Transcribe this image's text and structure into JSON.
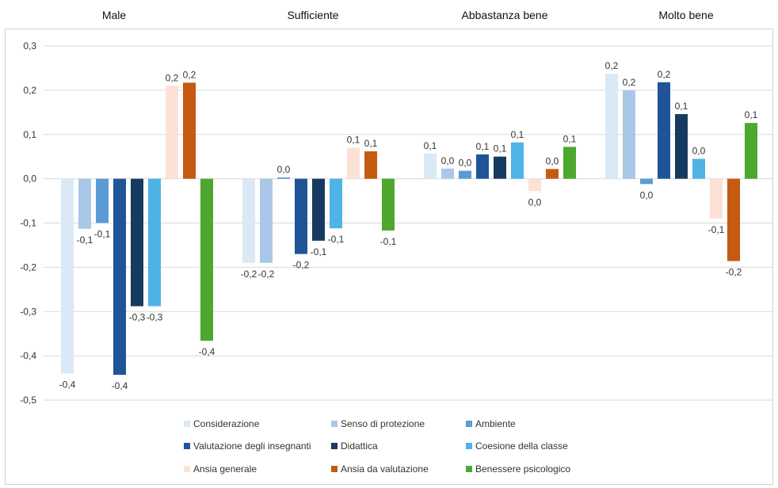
{
  "chart_data": {
    "type": "bar",
    "categories": [
      "Male",
      "Sufficiente",
      "Abbastanza bene",
      "Molto bene"
    ],
    "ylim": [
      -0.5,
      0.3
    ],
    "yticks": [
      0.3,
      0.2,
      0.1,
      0.0,
      -0.1,
      -0.2,
      -0.3,
      -0.4,
      -0.5
    ],
    "ytick_labels": [
      "0,3",
      "0,2",
      "0,1",
      "0,0",
      "-0,1",
      "-0,2",
      "-0,3",
      "-0,4",
      "-0,5"
    ],
    "grid": true,
    "legend_position": "bottom",
    "series": [
      {
        "name": "Considerazione",
        "color": "#dbe8f5",
        "values": [
          -0.44,
          -0.19,
          0.057,
          0.237
        ],
        "labels": [
          "-0,4",
          "-0,2",
          "0,1",
          "0,2"
        ]
      },
      {
        "name": "Senso di protezione",
        "color": "#a9c8e8",
        "values": [
          -0.113,
          -0.19,
          0.023,
          0.2
        ],
        "labels": [
          "-0,1",
          "-0,2",
          "0,0",
          "0,2"
        ]
      },
      {
        "name": "Ambiente",
        "color": "#5b9bd5",
        "values": [
          -0.1,
          0.003,
          0.018,
          -0.012
        ],
        "labels": [
          "-0,1",
          "0,0",
          "0,0",
          "0,0"
        ]
      },
      {
        "name": "Valutazione degli insegnanti",
        "color": "#1f5597",
        "values": [
          -0.443,
          -0.17,
          0.055,
          0.218
        ],
        "labels": [
          "-0,4",
          "-0,2",
          "0,1",
          "0,2"
        ]
      },
      {
        "name": "Didattica",
        "color": "#173a61",
        "values": [
          -0.288,
          -0.14,
          0.05,
          0.146
        ],
        "labels": [
          "-0,3",
          "-0,1",
          "0,1",
          "0,1"
        ]
      },
      {
        "name": "Coesione della classe",
        "color": "#4fb3e6",
        "values": [
          -0.288,
          -0.112,
          0.082,
          0.045
        ],
        "labels": [
          "-0,3",
          "-0,1",
          "0,1",
          "0,0"
        ]
      },
      {
        "name": "Ansia generale",
        "color": "#fbe2d5",
        "values": [
          0.21,
          0.07,
          -0.028,
          -0.09
        ],
        "labels": [
          "0,2",
          "0,1",
          "0,0",
          "-0,1"
        ]
      },
      {
        "name": "Ansia da valutazione",
        "color": "#c55a11",
        "values": [
          0.217,
          0.062,
          0.022,
          -0.186
        ],
        "labels": [
          "0,2",
          "0,1",
          "0,0",
          "-0,2"
        ]
      },
      {
        "name": "Benessere psicologico",
        "color": "#4ea72e",
        "values": [
          -0.366,
          -0.117,
          0.072,
          0.126
        ],
        "labels": [
          "-0,4",
          "-0,1",
          "0,1",
          "0,1"
        ]
      }
    ]
  }
}
